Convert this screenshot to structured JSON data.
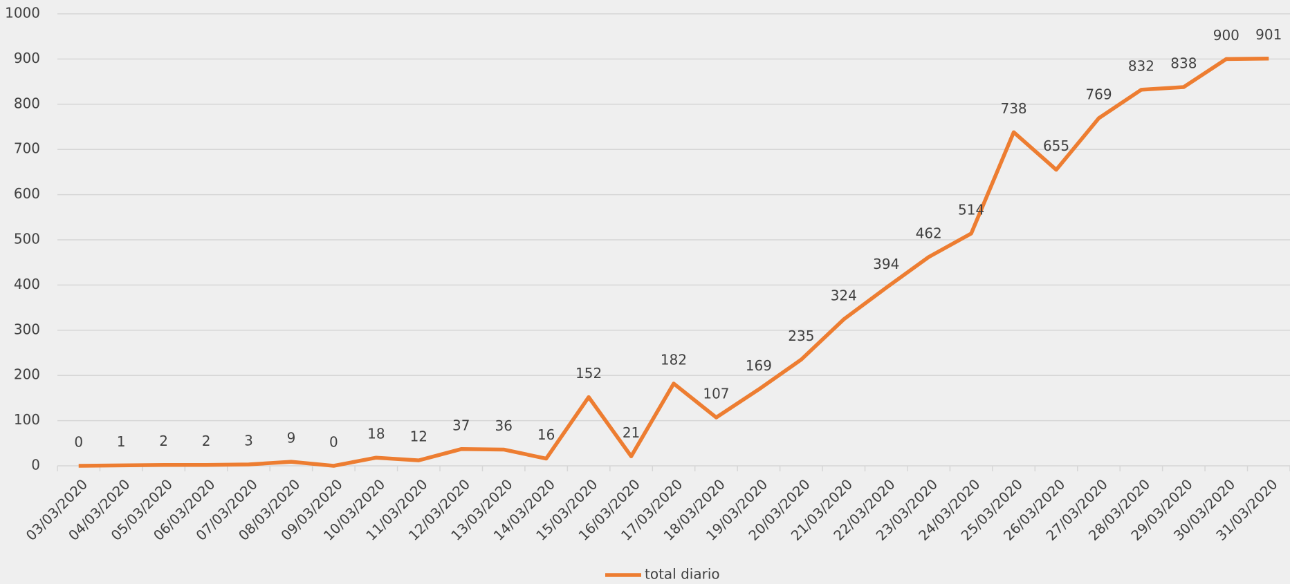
{
  "chart_data": {
    "type": "line",
    "categories": [
      "03/03/2020",
      "04/03/2020",
      "05/03/2020",
      "06/03/2020",
      "07/03/2020",
      "08/03/2020",
      "09/03/2020",
      "10/03/2020",
      "11/03/2020",
      "12/03/2020",
      "13/03/2020",
      "14/03/2020",
      "15/03/2020",
      "16/03/2020",
      "17/03/2020",
      "18/03/2020",
      "19/03/2020",
      "20/03/2020",
      "21/03/2020",
      "22/03/2020",
      "23/03/2020",
      "24/03/2020",
      "25/03/2020",
      "26/03/2020",
      "27/03/2020",
      "28/03/2020",
      "29/03/2020",
      "30/03/2020",
      "31/03/2020"
    ],
    "series": [
      {
        "name": "total diario",
        "color": "#ed7d31",
        "values": [
          0,
          1,
          2,
          2,
          3,
          9,
          0,
          18,
          12,
          37,
          36,
          16,
          152,
          21,
          182,
          107,
          169,
          235,
          324,
          394,
          462,
          514,
          738,
          655,
          769,
          832,
          838,
          900,
          901
        ]
      }
    ],
    "ylim": [
      0,
      1000
    ],
    "yticks": [
      0,
      100,
      200,
      300,
      400,
      500,
      600,
      700,
      800,
      900,
      1000
    ],
    "grid": true,
    "data_labels": true,
    "legend": "bottom"
  }
}
